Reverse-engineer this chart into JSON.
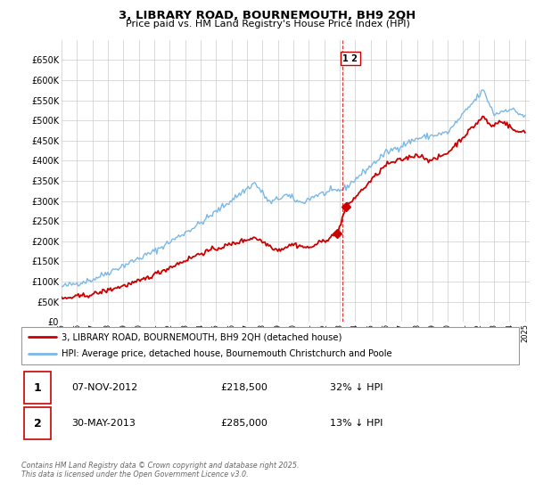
{
  "title": "3, LIBRARY ROAD, BOURNEMOUTH, BH9 2QH",
  "subtitle": "Price paid vs. HM Land Registry's House Price Index (HPI)",
  "legend_entry1": "3, LIBRARY ROAD, BOURNEMOUTH, BH9 2QH (detached house)",
  "legend_entry2": "HPI: Average price, detached house, Bournemouth Christchurch and Poole",
  "table_row1_num": "1",
  "table_row1_date": "07-NOV-2012",
  "table_row1_price": "£218,500",
  "table_row1_hpi": "32% ↓ HPI",
  "table_row2_num": "2",
  "table_row2_date": "30-MAY-2013",
  "table_row2_price": "£285,000",
  "table_row2_hpi": "13% ↓ HPI",
  "footer": "Contains HM Land Registry data © Crown copyright and database right 2025.\nThis data is licensed under the Open Government Licence v3.0.",
  "hpi_color": "#7ab8e8",
  "price_color": "#cc0000",
  "background_color": "#ffffff",
  "grid_color": "#cccccc",
  "vline_color": "#cc0000",
  "ylim": [
    0,
    700000
  ],
  "yticks": [
    0,
    50000,
    100000,
    150000,
    200000,
    250000,
    300000,
    350000,
    400000,
    450000,
    500000,
    550000,
    600000,
    650000
  ],
  "year_start": 1995,
  "year_end": 2025,
  "sale1_year": 2012.86,
  "sale1_price": 218500,
  "sale2_year": 2013.41,
  "sale2_price": 285000,
  "vline_year": 2013.2,
  "marker1_label": "1",
  "marker2_label": "2"
}
